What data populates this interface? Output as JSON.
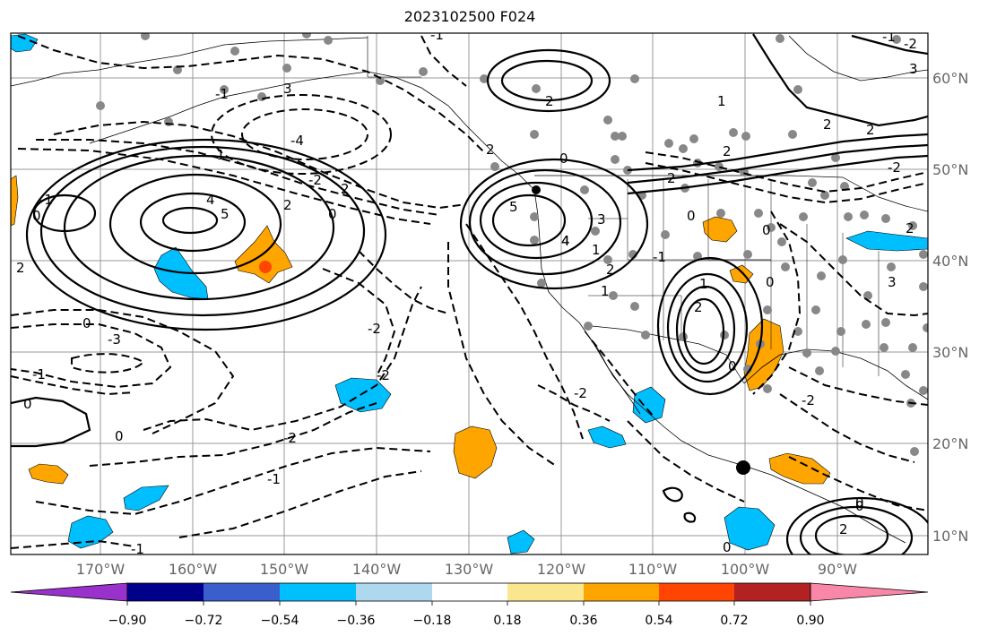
{
  "title": "2023102500 F024",
  "colors": {
    "bin_colors": [
      "#9932CC",
      "#00008B",
      "#3A5FCD",
      "#00BFFF",
      "#ADD8F0",
      "#FFFFFF",
      "#FAE68C",
      "#FFA500",
      "#FF4500",
      "#B22222",
      "#F887A8"
    ],
    "contour": "#000000",
    "grid": "#999999",
    "station": "#888888"
  },
  "map": {
    "lon_labels": [
      "170°W",
      "160°W",
      "150°W",
      "140°W",
      "130°W",
      "120°W",
      "110°W",
      "100°W",
      "90°W"
    ],
    "lat_labels": [
      "60°N",
      "50°N",
      "40°N",
      "30°N",
      "20°N",
      "10°N"
    ]
  },
  "contour_labels": [
    "-1",
    "3",
    "-4",
    "-1",
    "-2",
    "2",
    "0",
    "2",
    "5",
    "4",
    "2",
    "0",
    "-1",
    "-3",
    "-2",
    "-1",
    "0",
    "0",
    "-2",
    "-1",
    "-2",
    "0",
    "2",
    "-1",
    "5",
    "4",
    "3",
    "2",
    "0",
    "2",
    "1",
    "2",
    "2",
    "3",
    "2",
    "1",
    "0",
    "1",
    "0",
    "-2",
    "-1",
    "0",
    "2",
    "-2",
    "2",
    "-2",
    "0",
    "0",
    "3",
    "2",
    "1",
    "4",
    "-2",
    "-1",
    "0",
    "2",
    "-1",
    "0"
  ],
  "colorbar": {
    "tick_labels": [
      "−0.90",
      "−0.72",
      "−0.54",
      "−0.36",
      "−0.18",
      "0.18",
      "0.36",
      "0.54",
      "0.72",
      "0.90"
    ]
  }
}
